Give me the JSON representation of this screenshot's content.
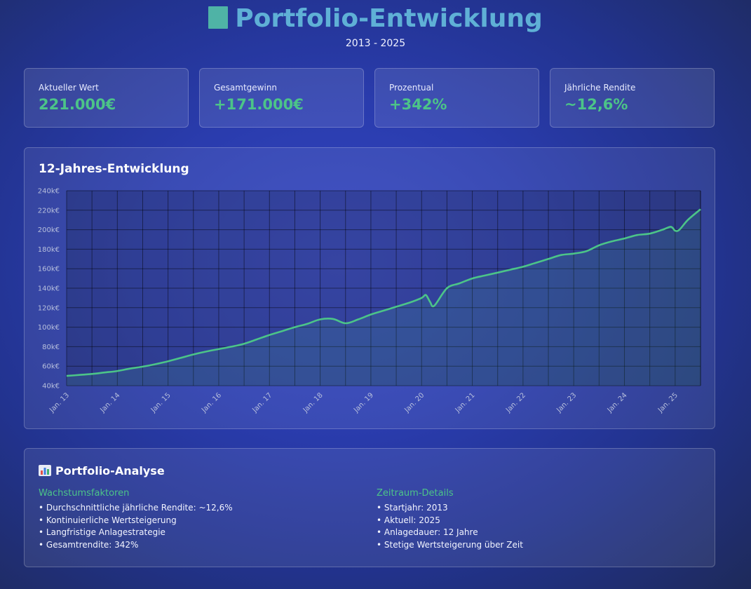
{
  "header": {
    "title": "Portfolio-Entwicklung",
    "title_icon": "bar-chart-icon",
    "subtitle": "2013 - 2025"
  },
  "stats": [
    {
      "label": "Aktueller Wert",
      "value": "221.000€"
    },
    {
      "label": "Gesamtgewinn",
      "value": "+171.000€"
    },
    {
      "label": "Prozentual",
      "value": "+342%"
    },
    {
      "label": "Jährliche Rendite",
      "value": "~12,6%"
    }
  ],
  "chart_panel": {
    "title": "12-Jahres-Entwicklung"
  },
  "chart_data": {
    "type": "area",
    "title": "12-Jahres-Entwicklung",
    "xlabel": "",
    "ylabel": "",
    "x_start": "2013-01",
    "x_end": "2025-07",
    "ylim": [
      40000,
      240000
    ],
    "y_ticks": [
      "40k€",
      "60k€",
      "80k€",
      "100k€",
      "120k€",
      "140k€",
      "160k€",
      "180k€",
      "200k€",
      "220k€",
      "240k€"
    ],
    "x_ticks": [
      "Jan. 13",
      "Jan. 14",
      "Jan. 15",
      "Jan. 16",
      "Jan. 17",
      "Jan. 18",
      "Jan. 19",
      "Jan. 20",
      "Jan. 21",
      "Jan. 22",
      "Jan. 23",
      "Jan. 24",
      "Jan. 25"
    ],
    "grid": true,
    "colors": {
      "line": "#4cc488",
      "fill": "#4cc488"
    },
    "series": [
      {
        "values": [
          {
            "x": "2013-01",
            "y": 50000
          },
          {
            "x": "2013-04",
            "y": 51000
          },
          {
            "x": "2013-07",
            "y": 52000
          },
          {
            "x": "2013-10",
            "y": 53500
          },
          {
            "x": "2014-01",
            "y": 55000
          },
          {
            "x": "2014-04",
            "y": 57500
          },
          {
            "x": "2014-07",
            "y": 59500
          },
          {
            "x": "2014-10",
            "y": 62000
          },
          {
            "x": "2015-01",
            "y": 65000
          },
          {
            "x": "2015-04",
            "y": 68500
          },
          {
            "x": "2015-07",
            "y": 72000
          },
          {
            "x": "2015-10",
            "y": 75000
          },
          {
            "x": "2016-01",
            "y": 77500
          },
          {
            "x": "2016-04",
            "y": 80000
          },
          {
            "x": "2016-07",
            "y": 83000
          },
          {
            "x": "2016-10",
            "y": 87500
          },
          {
            "x": "2017-01",
            "y": 92000
          },
          {
            "x": "2017-04",
            "y": 96000
          },
          {
            "x": "2017-07",
            "y": 100000
          },
          {
            "x": "2017-10",
            "y": 103500
          },
          {
            "x": "2018-01",
            "y": 108000
          },
          {
            "x": "2018-04",
            "y": 108500
          },
          {
            "x": "2018-07",
            "y": 104000
          },
          {
            "x": "2018-10",
            "y": 108000
          },
          {
            "x": "2019-01",
            "y": 113000
          },
          {
            "x": "2019-04",
            "y": 117000
          },
          {
            "x": "2019-07",
            "y": 121000
          },
          {
            "x": "2019-10",
            "y": 125000
          },
          {
            "x": "2020-01",
            "y": 130000
          },
          {
            "x": "2020-02",
            "y": 133000
          },
          {
            "x": "2020-03",
            "y": 126000
          },
          {
            "x": "2020-04",
            "y": 122000
          },
          {
            "x": "2020-07",
            "y": 140000
          },
          {
            "x": "2020-10",
            "y": 145000
          },
          {
            "x": "2021-01",
            "y": 150000
          },
          {
            "x": "2021-04",
            "y": 153000
          },
          {
            "x": "2021-07",
            "y": 156000
          },
          {
            "x": "2021-10",
            "y": 159000
          },
          {
            "x": "2022-01",
            "y": 162000
          },
          {
            "x": "2022-04",
            "y": 166000
          },
          {
            "x": "2022-07",
            "y": 170000
          },
          {
            "x": "2022-10",
            "y": 174000
          },
          {
            "x": "2023-01",
            "y": 175500
          },
          {
            "x": "2023-04",
            "y": 178000
          },
          {
            "x": "2023-07",
            "y": 184000
          },
          {
            "x": "2023-10",
            "y": 188000
          },
          {
            "x": "2024-01",
            "y": 191000
          },
          {
            "x": "2024-04",
            "y": 194500
          },
          {
            "x": "2024-07",
            "y": 196000
          },
          {
            "x": "2024-10",
            "y": 200000
          },
          {
            "x": "2024-12",
            "y": 203000
          },
          {
            "x": "2025-01",
            "y": 199000
          },
          {
            "x": "2025-02",
            "y": 200000
          },
          {
            "x": "2025-04",
            "y": 210000
          },
          {
            "x": "2025-07",
            "y": 221000
          }
        ]
      }
    ]
  },
  "analysis": {
    "title": "Portfolio-Analyse",
    "left": {
      "heading": "Wachstumsfaktoren",
      "items": [
        "Durchschnittliche jährliche Rendite: ~12,6%",
        "Kontinuierliche Wertsteigerung",
        "Langfristige Anlagestrategie",
        "Gesamtrendite: 342%"
      ]
    },
    "right": {
      "heading": "Zeitraum-Details",
      "items": [
        "Startjahr: 2013",
        "Aktuell: 2025",
        "Anlagedauer: 12 Jahre",
        "Stetige Wertsteigerung über Zeit"
      ]
    }
  }
}
